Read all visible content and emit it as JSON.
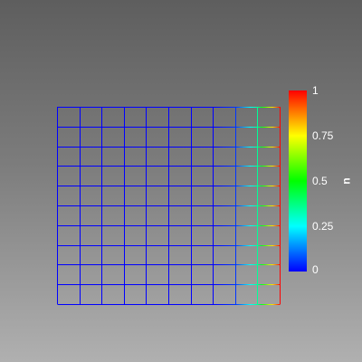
{
  "chart_data": {
    "type": "heatmap",
    "field_name": "u",
    "mesh": {
      "x_nodes": [
        0,
        0.1,
        0.2,
        0.3,
        0.4,
        0.5,
        0.6,
        0.7,
        0.8,
        0.9,
        1.0
      ],
      "y_rows": 10,
      "node_values": [
        0,
        0,
        0,
        0,
        0,
        0,
        0,
        0,
        0.05,
        0.35,
        1.0
      ]
    },
    "colorbar": {
      "title": "u",
      "range": [
        0,
        1
      ],
      "ticks": [
        0,
        0.25,
        0.5,
        0.75,
        1
      ],
      "tick_labels": [
        "0",
        "0.25",
        "0.5",
        "0.75",
        "1"
      ],
      "colormap": [
        "#0000ff",
        "#00ffff",
        "#00ff00",
        "#ffff00",
        "#ff0000"
      ]
    }
  }
}
